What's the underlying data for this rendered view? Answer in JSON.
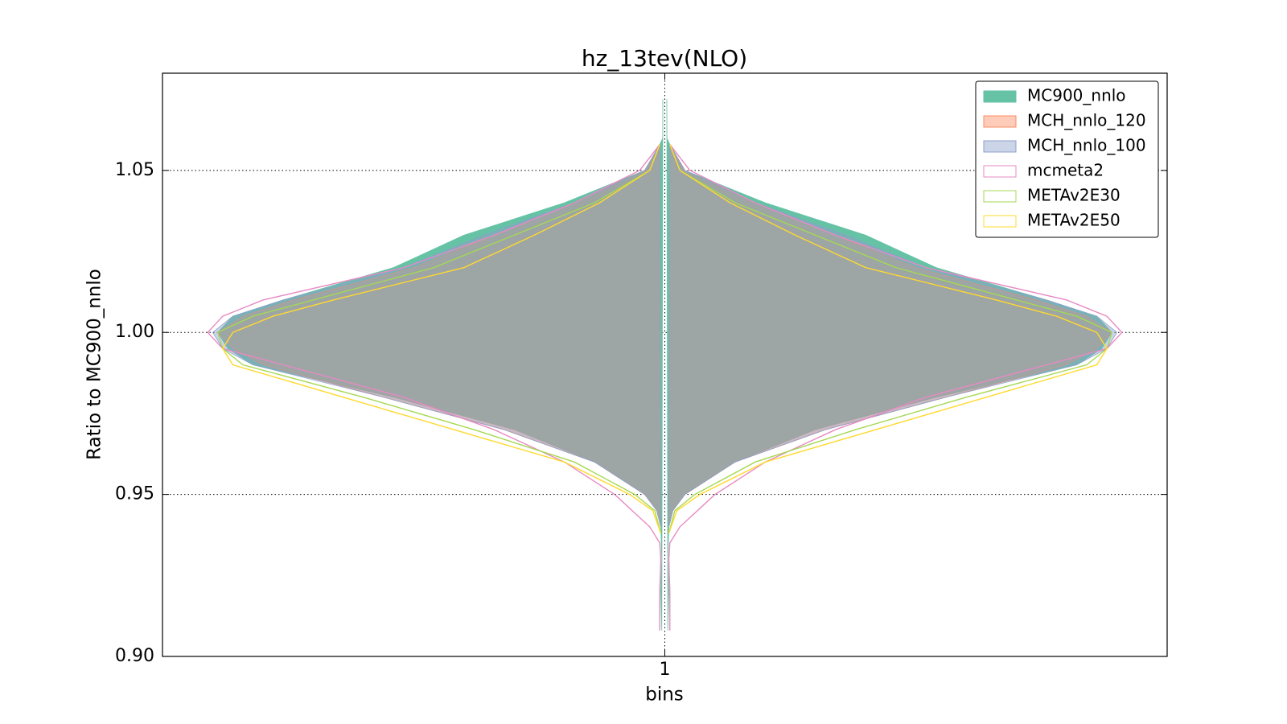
{
  "chart_data": {
    "type": "violin",
    "title": "hz_13tev(NLO)",
    "x_label": "bins",
    "y_label": "Ratio to MC900_nnlo",
    "xlim": [
      0.5,
      1.5
    ],
    "xticks": [
      1
    ],
    "ylim": [
      0.9,
      1.08
    ],
    "yticks": [
      {
        "value": 0.9,
        "label": "0.90"
      },
      {
        "value": 0.95,
        "label": "0.95"
      },
      {
        "value": 1.0,
        "label": "1.00"
      },
      {
        "value": 1.05,
        "label": "1.05"
      }
    ],
    "grid": true,
    "legend": "upper right",
    "position": 1,
    "series": [
      {
        "name": "MC900_nnlo",
        "color": "#66c2a5",
        "fill": true,
        "y": [
          1.072,
          1.06,
          1.058,
          1.05,
          1.04,
          1.03,
          1.02,
          1.01,
          1.005,
          1.0,
          0.995,
          0.99,
          0.98,
          0.97,
          0.96,
          0.95,
          0.945,
          0.94,
          0.93,
          0.92,
          0.908
        ],
        "half_width": [
          0.002,
          0.002,
          0.005,
          0.02,
          0.1,
          0.2,
          0.27,
          0.38,
          0.43,
          0.445,
          0.435,
          0.41,
          0.27,
          0.15,
          0.07,
          0.02,
          0.008,
          0.004,
          0.003,
          0.004,
          0.003
        ]
      },
      {
        "name": "MCH_nnlo_120",
        "color": "#fc8d62",
        "fill": true,
        "y": [
          1.058,
          1.05,
          1.04,
          1.03,
          1.02,
          1.01,
          1.005,
          1.0,
          0.995,
          0.99,
          0.98,
          0.97,
          0.96,
          0.95,
          0.945,
          0.94
        ],
        "half_width": [
          0.005,
          0.02,
          0.09,
          0.17,
          0.25,
          0.37,
          0.42,
          0.445,
          0.43,
          0.4,
          0.28,
          0.16,
          0.07,
          0.02,
          0.008,
          0.004
        ]
      },
      {
        "name": "MCH_nnlo_100",
        "color": "#8da0cb",
        "fill": true,
        "y": [
          1.058,
          1.05,
          1.04,
          1.03,
          1.02,
          1.01,
          1.005,
          1.0,
          0.995,
          0.99,
          0.98,
          0.97,
          0.96,
          0.95,
          0.945,
          0.94
        ],
        "half_width": [
          0.005,
          0.02,
          0.09,
          0.18,
          0.26,
          0.38,
          0.43,
          0.45,
          0.44,
          0.41,
          0.28,
          0.16,
          0.07,
          0.02,
          0.008,
          0.004
        ]
      },
      {
        "name": "mcmeta2",
        "color": "#e78ac3",
        "fill": false,
        "y": [
          1.058,
          1.05,
          1.04,
          1.03,
          1.02,
          1.01,
          1.005,
          1.0,
          0.995,
          0.99,
          0.98,
          0.97,
          0.96,
          0.95,
          0.94,
          0.935,
          0.93,
          0.92,
          0.908
        ],
        "half_width": [
          0.005,
          0.025,
          0.09,
          0.17,
          0.26,
          0.4,
          0.44,
          0.455,
          0.44,
          0.38,
          0.26,
          0.17,
          0.1,
          0.05,
          0.015,
          0.005,
          0.004,
          0.005,
          0.005
        ]
      },
      {
        "name": "METAv2E30",
        "color": "#a6d854",
        "fill": false,
        "y": [
          1.058,
          1.05,
          1.04,
          1.03,
          1.02,
          1.01,
          1.005,
          1.0,
          0.995,
          0.99,
          0.98,
          0.97,
          0.96,
          0.95,
          0.945,
          0.938
        ],
        "half_width": [
          0.005,
          0.015,
          0.07,
          0.15,
          0.23,
          0.35,
          0.41,
          0.445,
          0.44,
          0.42,
          0.3,
          0.19,
          0.09,
          0.03,
          0.01,
          0.004
        ]
      },
      {
        "name": "METAv2E50",
        "color": "#ffd92f",
        "fill": false,
        "y": [
          1.058,
          1.05,
          1.04,
          1.03,
          1.02,
          1.01,
          1.005,
          1.0,
          0.995,
          0.99,
          0.98,
          0.97,
          0.96,
          0.95,
          0.945,
          0.938
        ],
        "half_width": [
          0.005,
          0.015,
          0.065,
          0.13,
          0.2,
          0.33,
          0.39,
          0.43,
          0.44,
          0.43,
          0.32,
          0.21,
          0.1,
          0.035,
          0.012,
          0.004
        ]
      }
    ]
  }
}
